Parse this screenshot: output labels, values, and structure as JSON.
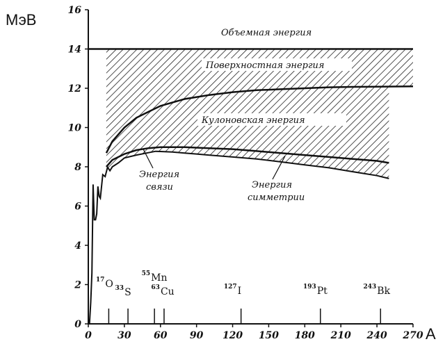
{
  "chart_data": {
    "type": "line",
    "title": "",
    "ylabel": "МэВ",
    "xlabel": "A",
    "xlim": [
      0,
      270
    ],
    "ylim": [
      0,
      16
    ],
    "x_ticks": [
      0,
      30,
      60,
      90,
      120,
      150,
      180,
      210,
      240,
      270
    ],
    "y_ticks": [
      0,
      2,
      4,
      6,
      8,
      10,
      12,
      14,
      16
    ],
    "grid": false,
    "series": [
      {
        "name": "Энергия связи",
        "x": [
          1,
          2,
          3,
          4,
          5,
          6,
          7,
          8,
          9,
          10,
          12,
          14,
          16,
          18,
          20,
          25,
          30,
          40,
          50,
          56,
          60,
          70,
          80,
          90,
          100,
          120,
          140,
          160,
          180,
          200,
          220,
          240,
          250
        ],
        "y": [
          0,
          1.1,
          2.6,
          7.1,
          5.3,
          5.3,
          5.6,
          7.0,
          6.5,
          6.4,
          7.6,
          7.5,
          7.98,
          7.8,
          8.0,
          8.2,
          8.45,
          8.6,
          8.72,
          8.79,
          8.78,
          8.75,
          8.7,
          8.65,
          8.6,
          8.5,
          8.4,
          8.25,
          8.1,
          7.95,
          7.75,
          7.55,
          7.4
        ]
      },
      {
        "name": "upper_binding_boundary",
        "x": [
          15,
          20,
          30,
          40,
          50,
          60,
          80,
          100,
          120,
          140,
          160,
          180,
          200,
          220,
          240,
          250
        ],
        "y": [
          8.0,
          8.35,
          8.65,
          8.85,
          8.95,
          9.0,
          9.0,
          8.95,
          8.9,
          8.8,
          8.7,
          8.6,
          8.5,
          8.4,
          8.3,
          8.2
        ]
      },
      {
        "name": "coulomb_boundary",
        "x": [
          15,
          20,
          30,
          40,
          50,
          60,
          80,
          100,
          120,
          140,
          160,
          180,
          200,
          220,
          240,
          270
        ],
        "y": [
          8.7,
          9.3,
          10.0,
          10.5,
          10.8,
          11.1,
          11.45,
          11.65,
          11.8,
          11.9,
          11.95,
          12.0,
          12.05,
          12.07,
          12.08,
          12.1
        ]
      }
    ],
    "reference_lines": {
      "volume_energy": 14.0
    },
    "bands": [
      {
        "label": "Объемная энергия"
      },
      {
        "label": "Поверхностная энергия"
      },
      {
        "label": "Кулоновская энергия"
      },
      {
        "label": "Энергия симметрии"
      }
    ],
    "annotations": [
      {
        "label_line1": "Энергия",
        "label_line2": "связи"
      },
      {
        "label_line1": "Энергия",
        "label_line2": "симметрии"
      }
    ],
    "nuclides": [
      {
        "mass": "17",
        "symbol": "O",
        "A": 17
      },
      {
        "mass": "33",
        "symbol": "S",
        "A": 33
      },
      {
        "mass": "55",
        "symbol": "Mn",
        "A": 55
      },
      {
        "mass": "63",
        "symbol": "Cu",
        "A": 63
      },
      {
        "mass": "127",
        "symbol": "I",
        "A": 127
      },
      {
        "mass": "193",
        "symbol": "Pt",
        "A": 193
      },
      {
        "mass": "243",
        "symbol": "Bk",
        "A": 243
      }
    ]
  }
}
